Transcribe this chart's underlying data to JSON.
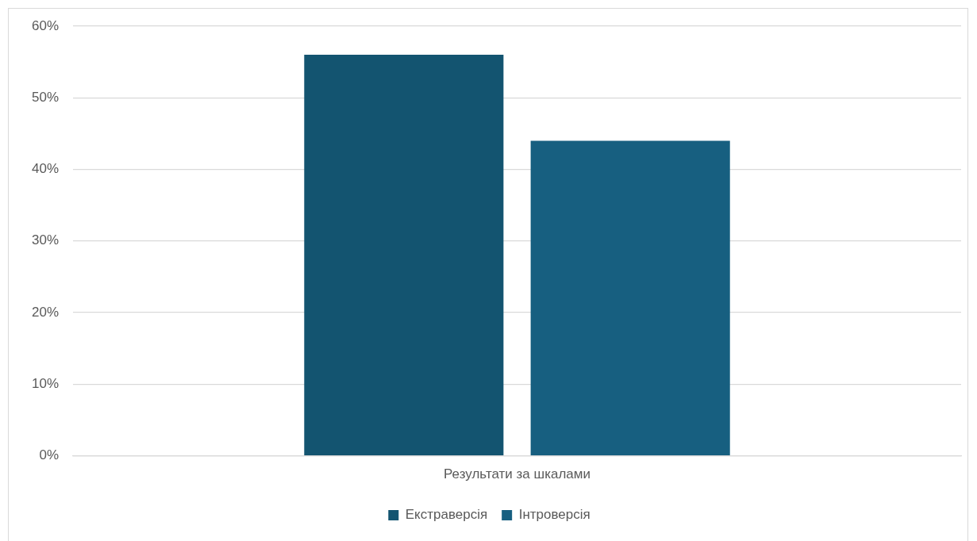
{
  "chart_data": {
    "type": "bar",
    "categories": [
      "Результати за шкалами"
    ],
    "series": [
      {
        "name": "Екстраверсія",
        "color": "#135470",
        "values": [
          56
        ]
      },
      {
        "name": "Інтроверсія",
        "color": "#175f80",
        "values": [
          44
        ]
      }
    ],
    "ylim": [
      0,
      60
    ],
    "yticks": [
      {
        "value": 0,
        "label": "0%"
      },
      {
        "value": 10,
        "label": "10%"
      },
      {
        "value": 20,
        "label": "20%"
      },
      {
        "value": 30,
        "label": "30%"
      },
      {
        "value": 40,
        "label": "40%"
      },
      {
        "value": 50,
        "label": "50%"
      },
      {
        "value": 60,
        "label": "60%"
      }
    ],
    "grid": "y",
    "legend": "bottom"
  }
}
